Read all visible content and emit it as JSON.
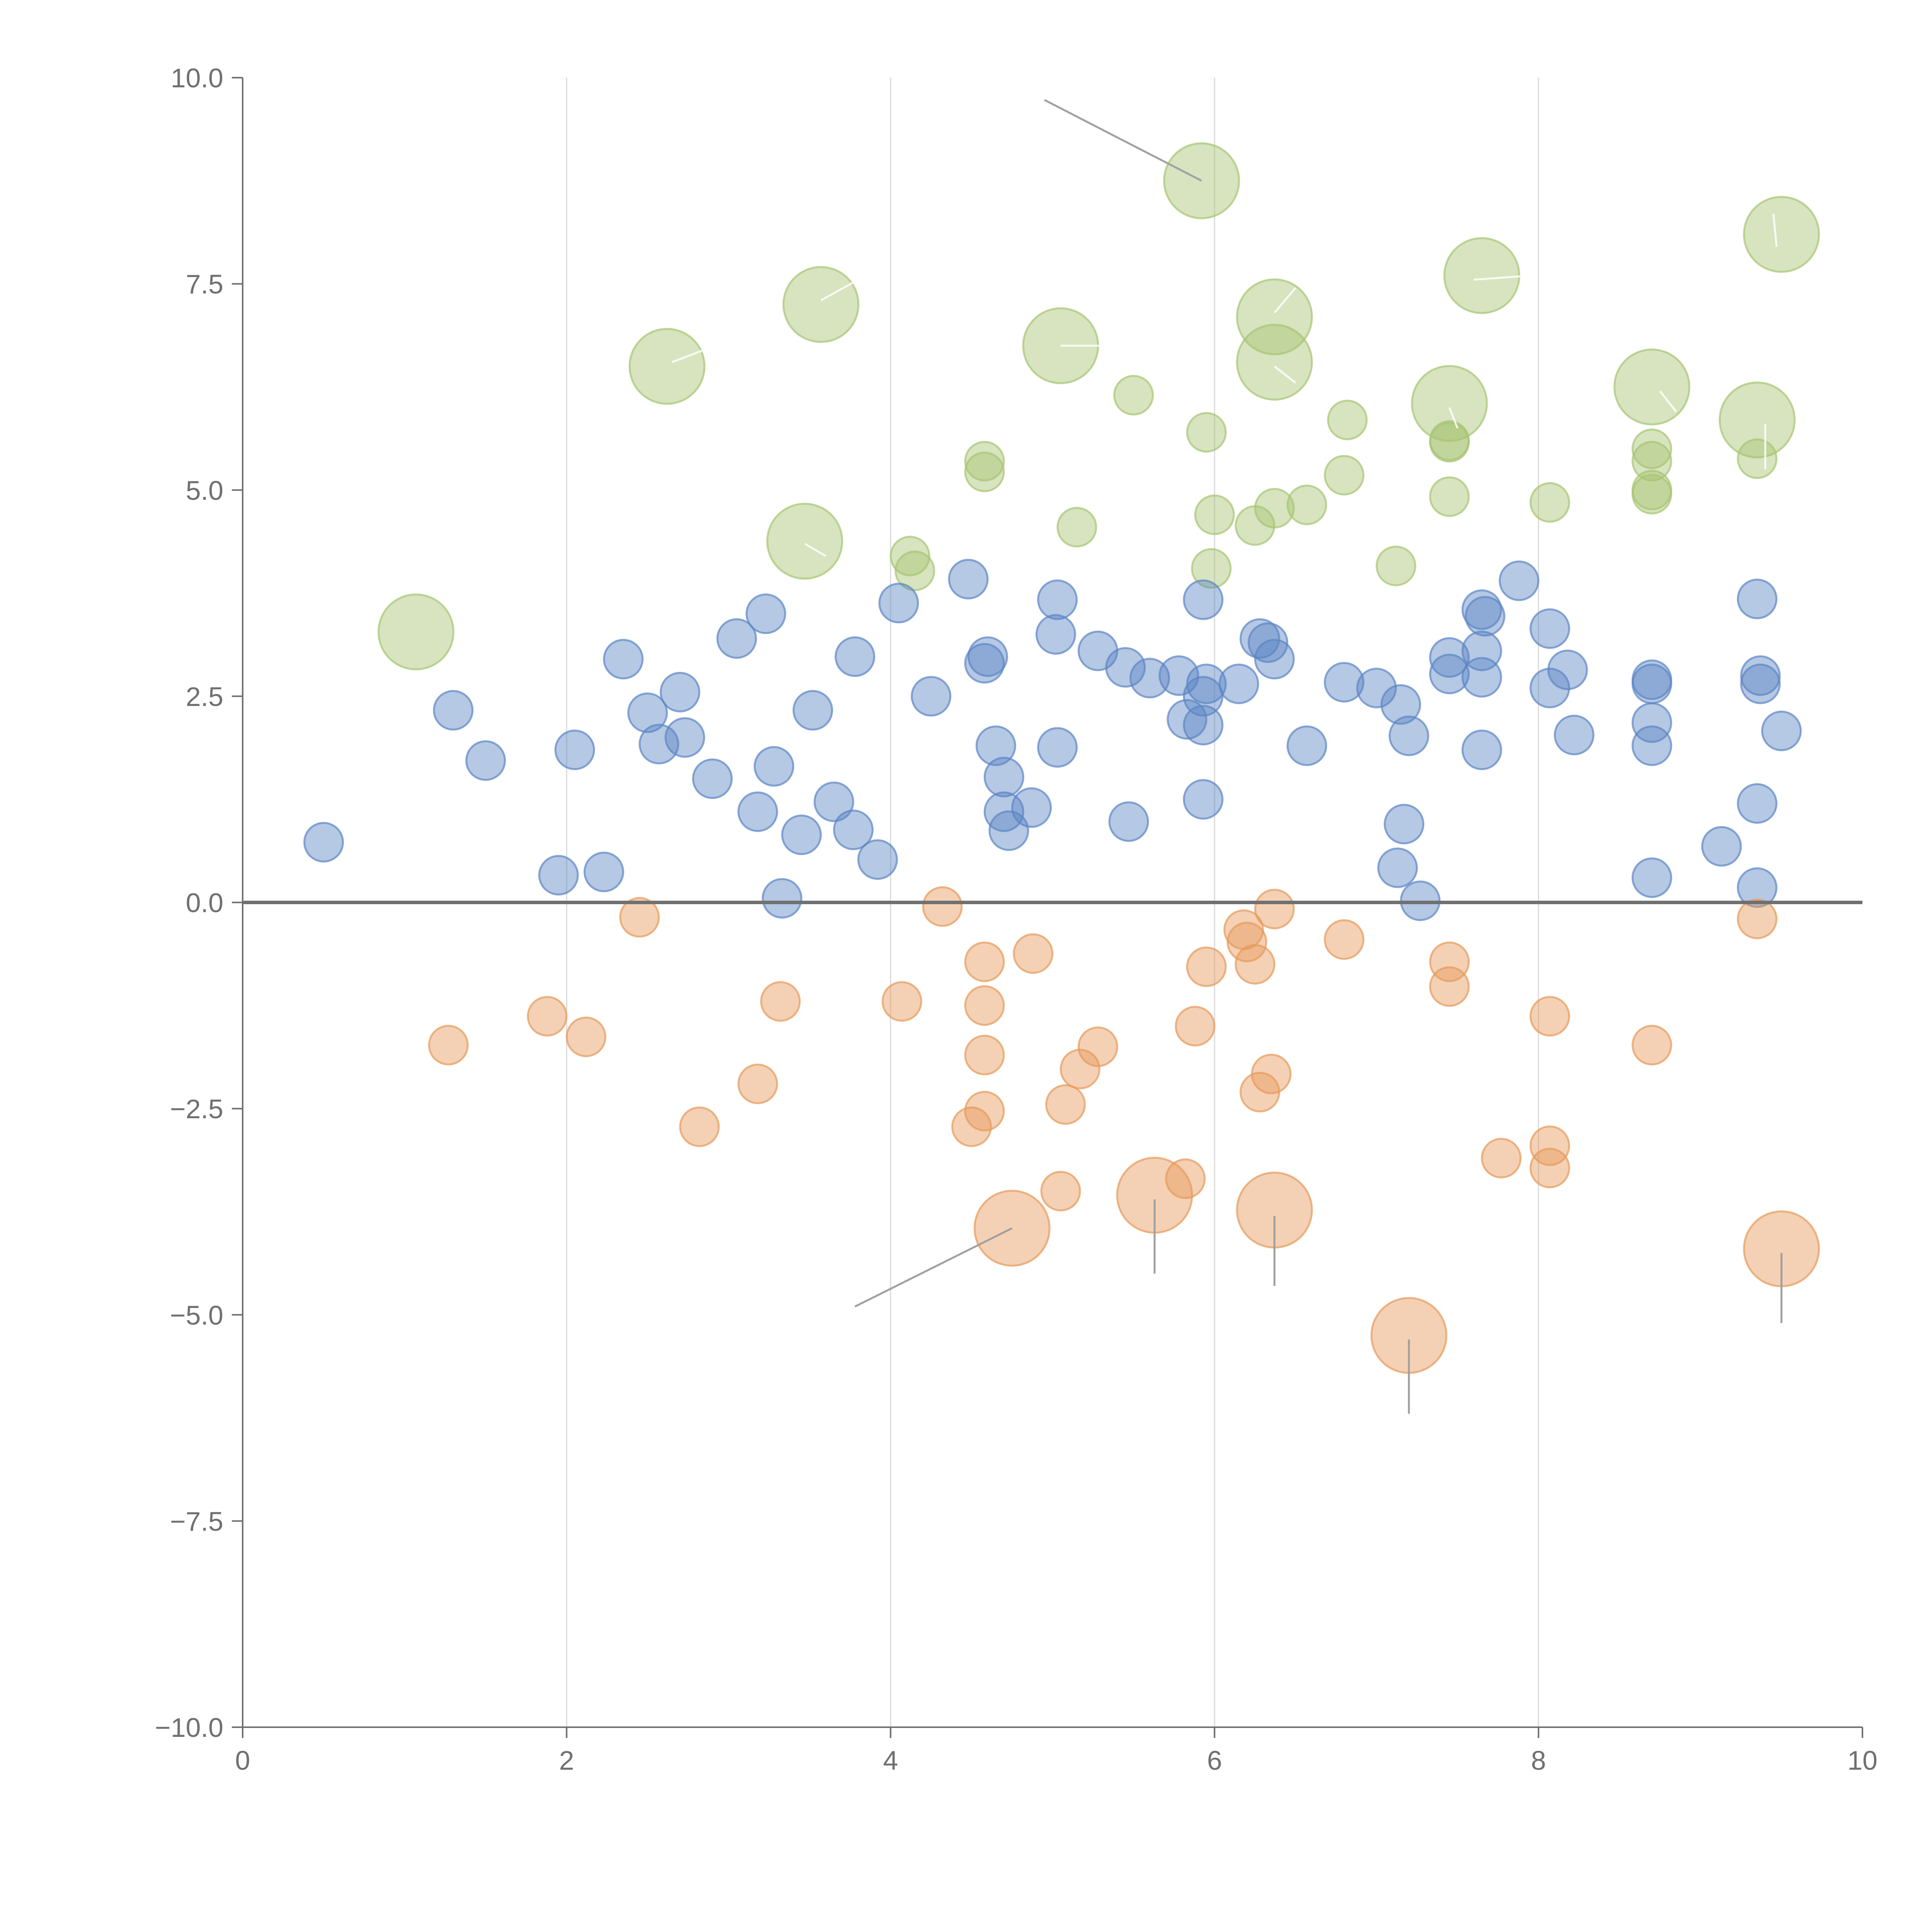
{
  "chart_data": {
    "type": "scatter",
    "subtype": "bubble",
    "title": "",
    "xlabel": "",
    "ylabel": "",
    "xlim": [
      0,
      10
    ],
    "ylim": [
      -10,
      10
    ],
    "grid": "vertical",
    "reference_line_y": 0,
    "x_ticks": [
      "0",
      "2",
      "4",
      "6",
      "8",
      "10"
    ],
    "y_ticks": [
      "10.0",
      "7.5",
      "5.0",
      "2.5",
      "0.0",
      "−2.5",
      "−5.0",
      "−7.5",
      "−10.0"
    ],
    "x_tick_values": [
      0,
      2,
      4,
      6,
      8,
      10
    ],
    "y_tick_values": [
      10,
      7.5,
      5,
      2.5,
      0,
      -2.5,
      -5,
      -7.5,
      -10
    ],
    "colors": {
      "green": "#a6c472",
      "blue": "#5b84c4",
      "orange": "#e69a5a"
    },
    "series": [
      {
        "name": "green",
        "color": "#a6c472",
        "points": [
          {
            "x": 5.92,
            "y": 8.75,
            "s": 2
          },
          {
            "x": 9.5,
            "y": 8.1,
            "s": 2
          },
          {
            "x": 7.65,
            "y": 7.6,
            "s": 2
          },
          {
            "x": 3.57,
            "y": 7.25,
            "s": 2
          },
          {
            "x": 6.37,
            "y": 7.1,
            "s": 2
          },
          {
            "x": 5.05,
            "y": 6.75,
            "s": 2
          },
          {
            "x": 2.62,
            "y": 6.5,
            "s": 2
          },
          {
            "x": 6.37,
            "y": 6.55,
            "s": 2
          },
          {
            "x": 8.7,
            "y": 6.25,
            "s": 2
          },
          {
            "x": 7.45,
            "y": 6.05,
            "s": 2
          },
          {
            "x": 9.35,
            "y": 5.85,
            "s": 2
          },
          {
            "x": 3.47,
            "y": 4.38,
            "s": 2
          },
          {
            "x": 1.07,
            "y": 3.28,
            "s": 2
          },
          {
            "x": 5.5,
            "y": 6.15,
            "s": 1
          },
          {
            "x": 5.95,
            "y": 5.7,
            "s": 1
          },
          {
            "x": 6.82,
            "y": 5.85,
            "s": 1
          },
          {
            "x": 7.45,
            "y": 5.6,
            "s": 1
          },
          {
            "x": 7.45,
            "y": 5.58,
            "s": 1
          },
          {
            "x": 8.7,
            "y": 5.5,
            "s": 1
          },
          {
            "x": 8.7,
            "y": 5.35,
            "s": 1
          },
          {
            "x": 9.35,
            "y": 5.38,
            "s": 1
          },
          {
            "x": 4.58,
            "y": 5.35,
            "s": 1
          },
          {
            "x": 4.58,
            "y": 5.22,
            "s": 1
          },
          {
            "x": 6.8,
            "y": 5.18,
            "s": 1
          },
          {
            "x": 8.7,
            "y": 5.0,
            "s": 1
          },
          {
            "x": 8.7,
            "y": 4.95,
            "s": 1
          },
          {
            "x": 7.45,
            "y": 4.92,
            "s": 1
          },
          {
            "x": 8.07,
            "y": 4.85,
            "s": 1
          },
          {
            "x": 6.57,
            "y": 4.82,
            "s": 1
          },
          {
            "x": 6.37,
            "y": 4.78,
            "s": 1
          },
          {
            "x": 6.0,
            "y": 4.7,
            "s": 1
          },
          {
            "x": 6.25,
            "y": 4.57,
            "s": 1
          },
          {
            "x": 5.15,
            "y": 4.55,
            "s": 1
          },
          {
            "x": 4.12,
            "y": 4.2,
            "s": 1
          },
          {
            "x": 4.15,
            "y": 4.02,
            "s": 1
          },
          {
            "x": 5.98,
            "y": 4.05,
            "s": 1
          },
          {
            "x": 7.12,
            "y": 4.08,
            "s": 1
          }
        ]
      },
      {
        "name": "blue",
        "color": "#5b84c4",
        "points": [
          {
            "x": 0.5,
            "y": 0.73
          },
          {
            "x": 1.3,
            "y": 2.33
          },
          {
            "x": 1.5,
            "y": 1.72
          },
          {
            "x": 1.95,
            "y": 0.33
          },
          {
            "x": 2.05,
            "y": 1.85
          },
          {
            "x": 2.23,
            "y": 0.37
          },
          {
            "x": 2.35,
            "y": 2.95
          },
          {
            "x": 2.5,
            "y": 2.3
          },
          {
            "x": 2.57,
            "y": 1.92
          },
          {
            "x": 2.7,
            "y": 2.55
          },
          {
            "x": 2.73,
            "y": 2.0
          },
          {
            "x": 2.9,
            "y": 1.5
          },
          {
            "x": 3.05,
            "y": 3.2
          },
          {
            "x": 3.18,
            "y": 1.1
          },
          {
            "x": 3.23,
            "y": 3.5
          },
          {
            "x": 3.28,
            "y": 1.65
          },
          {
            "x": 3.33,
            "y": 0.05
          },
          {
            "x": 3.45,
            "y": 0.82
          },
          {
            "x": 3.52,
            "y": 2.33
          },
          {
            "x": 3.65,
            "y": 1.22
          },
          {
            "x": 3.77,
            "y": 0.88
          },
          {
            "x": 3.78,
            "y": 2.98
          },
          {
            "x": 3.92,
            "y": 0.52
          },
          {
            "x": 4.05,
            "y": 3.63
          },
          {
            "x": 4.25,
            "y": 2.5
          },
          {
            "x": 4.48,
            "y": 3.92
          },
          {
            "x": 4.6,
            "y": 2.98
          },
          {
            "x": 4.58,
            "y": 2.9
          },
          {
            "x": 4.65,
            "y": 1.9
          },
          {
            "x": 4.7,
            "y": 1.52
          },
          {
            "x": 4.7,
            "y": 1.1
          },
          {
            "x": 4.73,
            "y": 0.87
          },
          {
            "x": 4.87,
            "y": 1.15
          },
          {
            "x": 5.03,
            "y": 3.67
          },
          {
            "x": 5.02,
            "y": 3.25
          },
          {
            "x": 5.03,
            "y": 1.88
          },
          {
            "x": 5.28,
            "y": 3.05
          },
          {
            "x": 5.45,
            "y": 2.85
          },
          {
            "x": 5.47,
            "y": 0.98
          },
          {
            "x": 5.6,
            "y": 2.72
          },
          {
            "x": 5.78,
            "y": 2.75
          },
          {
            "x": 5.83,
            "y": 2.22
          },
          {
            "x": 5.93,
            "y": 3.67
          },
          {
            "x": 5.95,
            "y": 2.65
          },
          {
            "x": 5.93,
            "y": 2.5
          },
          {
            "x": 5.93,
            "y": 2.15
          },
          {
            "x": 5.93,
            "y": 1.25
          },
          {
            "x": 6.15,
            "y": 2.65
          },
          {
            "x": 6.28,
            "y": 3.2
          },
          {
            "x": 6.33,
            "y": 3.15
          },
          {
            "x": 6.37,
            "y": 2.95
          },
          {
            "x": 6.57,
            "y": 1.9
          },
          {
            "x": 6.8,
            "y": 2.67
          },
          {
            "x": 7.0,
            "y": 2.6
          },
          {
            "x": 7.15,
            "y": 2.4
          },
          {
            "x": 7.2,
            "y": 2.02
          },
          {
            "x": 7.17,
            "y": 0.95
          },
          {
            "x": 7.13,
            "y": 0.42
          },
          {
            "x": 7.27,
            "y": 0.02
          },
          {
            "x": 7.45,
            "y": 2.97
          },
          {
            "x": 7.45,
            "y": 2.77
          },
          {
            "x": 7.65,
            "y": 3.55
          },
          {
            "x": 7.67,
            "y": 3.47
          },
          {
            "x": 7.65,
            "y": 3.05
          },
          {
            "x": 7.65,
            "y": 2.73
          },
          {
            "x": 7.65,
            "y": 1.85
          },
          {
            "x": 7.88,
            "y": 3.9
          },
          {
            "x": 8.07,
            "y": 3.32
          },
          {
            "x": 8.07,
            "y": 2.6
          },
          {
            "x": 8.18,
            "y": 2.82
          },
          {
            "x": 8.22,
            "y": 2.03
          },
          {
            "x": 8.7,
            "y": 2.7
          },
          {
            "x": 8.7,
            "y": 2.65
          },
          {
            "x": 8.7,
            "y": 2.18
          },
          {
            "x": 8.7,
            "y": 1.9
          },
          {
            "x": 8.7,
            "y": 0.3
          },
          {
            "x": 9.13,
            "y": 0.68
          },
          {
            "x": 9.35,
            "y": 3.68
          },
          {
            "x": 9.37,
            "y": 2.75
          },
          {
            "x": 9.37,
            "y": 2.65
          },
          {
            "x": 9.5,
            "y": 2.08
          },
          {
            "x": 9.35,
            "y": 1.2
          },
          {
            "x": 9.35,
            "y": 0.18
          }
        ]
      },
      {
        "name": "orange",
        "color": "#e69a5a",
        "points": [
          {
            "x": 4.75,
            "y": -3.95,
            "s": 2
          },
          {
            "x": 5.63,
            "y": -3.55,
            "s": 2
          },
          {
            "x": 6.37,
            "y": -3.73,
            "s": 2
          },
          {
            "x": 7.2,
            "y": -5.25,
            "s": 2
          },
          {
            "x": 9.5,
            "y": -4.2,
            "s": 2
          },
          {
            "x": 1.27,
            "y": -1.73,
            "s": 1
          },
          {
            "x": 1.88,
            "y": -1.38,
            "s": 1
          },
          {
            "x": 2.12,
            "y": -1.63,
            "s": 1
          },
          {
            "x": 2.45,
            "y": -0.18,
            "s": 1
          },
          {
            "x": 2.82,
            "y": -2.72,
            "s": 1
          },
          {
            "x": 3.18,
            "y": -2.2,
            "s": 1
          },
          {
            "x": 3.32,
            "y": -1.2,
            "s": 1
          },
          {
            "x": 4.07,
            "y": -1.2,
            "s": 1
          },
          {
            "x": 4.32,
            "y": -0.05,
            "s": 1
          },
          {
            "x": 4.5,
            "y": -2.72,
            "s": 1
          },
          {
            "x": 4.58,
            "y": -0.72,
            "s": 1
          },
          {
            "x": 4.58,
            "y": -1.25,
            "s": 1
          },
          {
            "x": 4.58,
            "y": -1.85,
            "s": 1
          },
          {
            "x": 4.58,
            "y": -2.53,
            "s": 1
          },
          {
            "x": 4.88,
            "y": -0.62,
            "s": 1
          },
          {
            "x": 5.05,
            "y": -3.5,
            "s": 1
          },
          {
            "x": 5.08,
            "y": -2.45,
            "s": 1
          },
          {
            "x": 5.17,
            "y": -2.02,
            "s": 1
          },
          {
            "x": 5.28,
            "y": -1.75,
            "s": 1
          },
          {
            "x": 5.82,
            "y": -3.35,
            "s": 1
          },
          {
            "x": 5.88,
            "y": -1.5,
            "s": 1
          },
          {
            "x": 5.95,
            "y": -0.78,
            "s": 1
          },
          {
            "x": 6.18,
            "y": -0.33,
            "s": 1
          },
          {
            "x": 6.2,
            "y": -0.48,
            "s": 1
          },
          {
            "x": 6.25,
            "y": -0.75,
            "s": 1
          },
          {
            "x": 6.28,
            "y": -2.3,
            "s": 1
          },
          {
            "x": 6.35,
            "y": -2.08,
            "s": 1
          },
          {
            "x": 6.37,
            "y": -0.08,
            "s": 1
          },
          {
            "x": 6.8,
            "y": -0.45,
            "s": 1
          },
          {
            "x": 7.45,
            "y": -0.72,
            "s": 1
          },
          {
            "x": 7.45,
            "y": -1.02,
            "s": 1
          },
          {
            "x": 7.77,
            "y": -3.1,
            "s": 1
          },
          {
            "x": 8.07,
            "y": -1.38,
            "s": 1
          },
          {
            "x": 8.07,
            "y": -2.95,
            "s": 1
          },
          {
            "x": 8.07,
            "y": -3.22,
            "s": 1
          },
          {
            "x": 8.7,
            "y": -1.73,
            "s": 1
          },
          {
            "x": 9.35,
            "y": -0.2,
            "s": 1
          }
        ]
      }
    ],
    "leader_lines": [
      {
        "x1": 5.92,
        "y1": 8.75,
        "x2": 4.95,
        "y2": 9.73
      },
      {
        "x1": 4.75,
        "y1": -3.95,
        "x2": 3.78,
        "y2": -4.9
      },
      {
        "x1": 5.63,
        "y1": -3.6,
        "x2": 5.63,
        "y2": -4.5
      },
      {
        "x1": 6.37,
        "y1": -3.8,
        "x2": 6.37,
        "y2": -4.65
      },
      {
        "x1": 7.2,
        "y1": -5.3,
        "x2": 7.2,
        "y2": -6.2
      },
      {
        "x1": 9.5,
        "y1": -4.25,
        "x2": 9.5,
        "y2": -5.1
      }
    ],
    "inner_ticks": [
      {
        "x1": 9.47,
        "y1": 7.95,
        "x2": 9.45,
        "y2": 8.35
      },
      {
        "x1": 7.6,
        "y1": 7.55,
        "x2": 7.95,
        "y2": 7.6
      },
      {
        "x1": 3.57,
        "y1": 7.3,
        "x2": 3.8,
        "y2": 7.55
      },
      {
        "x1": 6.37,
        "y1": 7.15,
        "x2": 6.5,
        "y2": 7.45
      },
      {
        "x1": 5.05,
        "y1": 6.75,
        "x2": 5.3,
        "y2": 6.75
      },
      {
        "x1": 2.65,
        "y1": 6.55,
        "x2": 2.85,
        "y2": 6.7
      },
      {
        "x1": 6.37,
        "y1": 6.5,
        "x2": 6.5,
        "y2": 6.3
      },
      {
        "x1": 8.75,
        "y1": 6.2,
        "x2": 8.85,
        "y2": 5.95
      },
      {
        "x1": 7.45,
        "y1": 6.0,
        "x2": 7.5,
        "y2": 5.75
      },
      {
        "x1": 9.4,
        "y1": 5.8,
        "x2": 9.4,
        "y2": 5.25
      },
      {
        "x1": 3.47,
        "y1": 4.35,
        "x2": 3.6,
        "y2": 4.2
      }
    ]
  }
}
